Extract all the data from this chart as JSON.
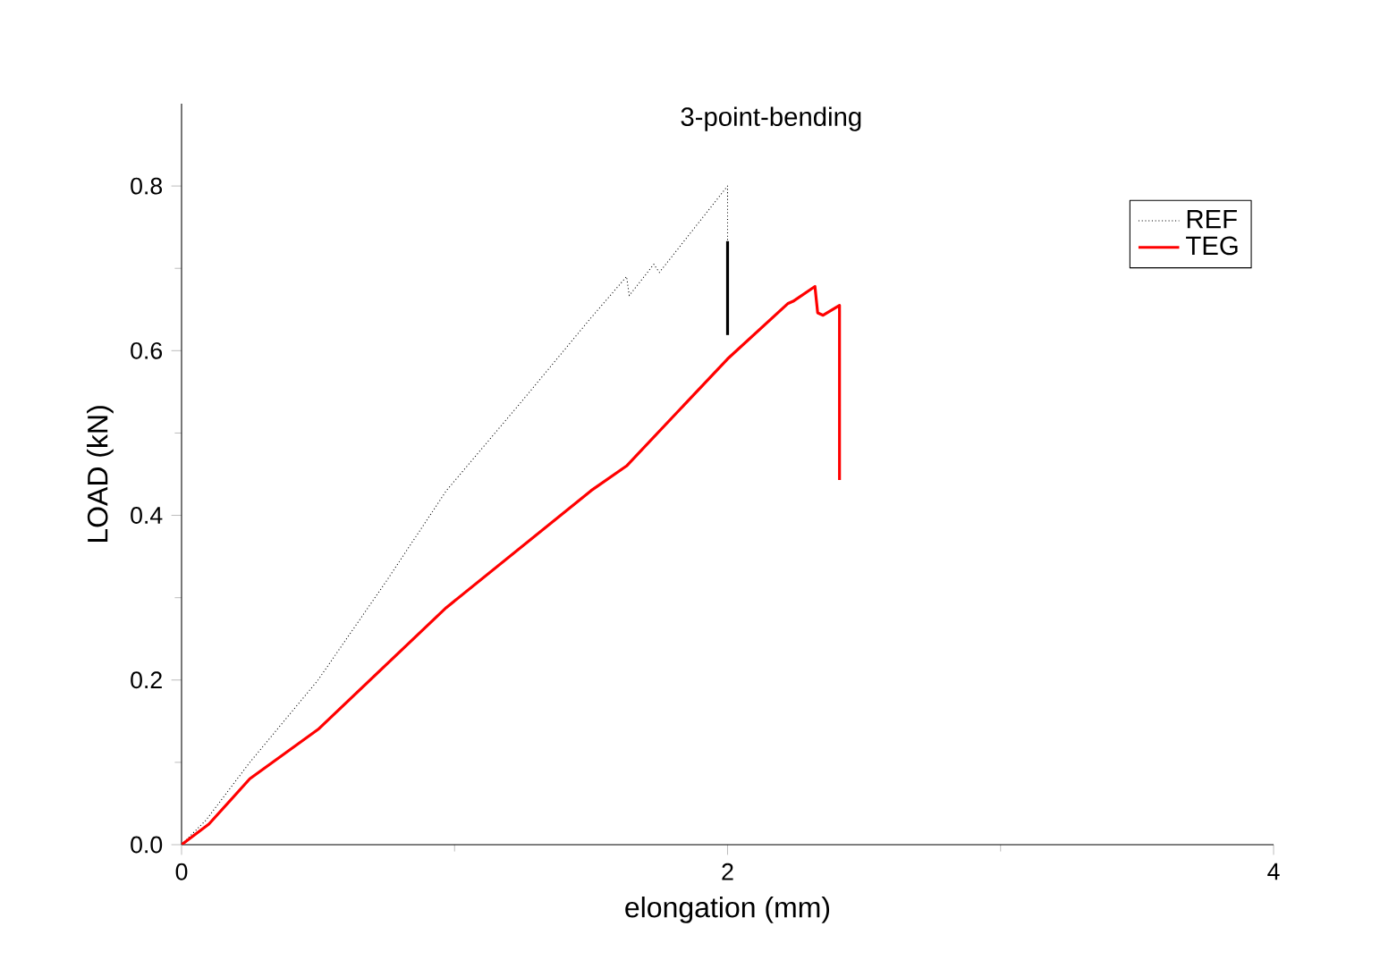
{
  "chart_data": {
    "type": "line",
    "title": "3-point-bending",
    "xlabel": "elongation (mm)",
    "ylabel": "LOAD (kN)",
    "xlim": [
      0,
      4
    ],
    "ylim": [
      0,
      0.9
    ],
    "xticks": [
      0,
      2,
      4
    ],
    "yticks": [
      {
        "value": 0,
        "label": "0.0"
      },
      0.2,
      0.4,
      0.6,
      0.8
    ],
    "grid": false,
    "legend": "top right",
    "marker": "none",
    "series": [
      {
        "name": "REF",
        "color": "#000000",
        "line_style": "dotted",
        "x": [
          0,
          0.09,
          0.25,
          0.5,
          0.75,
          0.97,
          1.25,
          1.5,
          1.63,
          1.64,
          1.73,
          1.75,
          2.0,
          2.0
        ],
        "values": [
          0,
          0.03,
          0.1,
          0.2,
          0.32,
          0.43,
          0.54,
          0.64,
          0.69,
          0.667,
          0.705,
          0.695,
          0.8,
          0.733
        ]
      },
      {
        "color": "#000000",
        "line_style": "solid",
        "x": [
          2.0,
          2.0
        ],
        "values": [
          0.733,
          0.619
        ]
      },
      {
        "name": "TEG",
        "color": "#ff0000",
        "line_style": "solid",
        "x": [
          0,
          0.1,
          0.25,
          0.5,
          0.97,
          1.5,
          1.63,
          2.0,
          2.22,
          2.24,
          2.32,
          2.33,
          2.35,
          2.41,
          2.41
        ],
        "values": [
          0,
          0.025,
          0.08,
          0.14,
          0.288,
          0.43,
          0.46,
          0.59,
          0.657,
          0.66,
          0.678,
          0.646,
          0.643,
          0.655,
          0.443
        ]
      }
    ]
  }
}
